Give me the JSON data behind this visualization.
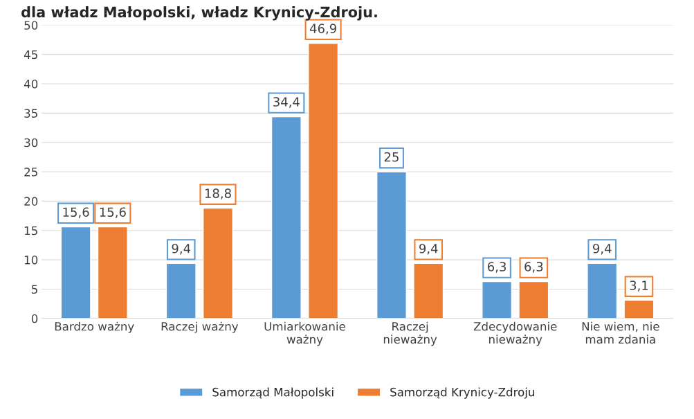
{
  "chart_data": {
    "type": "bar",
    "title": "dla władz Małopolski, władz Krynicy-Zdroju.",
    "categories": [
      "Bardzo ważny",
      "Raczej ważny",
      "Umiarkowanie\nważny",
      "Raczej\nnieważny",
      "Zdecydowanie\nnieważny",
      "Nie wiem, nie\nmam zdania"
    ],
    "series": [
      {
        "name": "Samorząd Małopolski",
        "color": "#5b9bd5",
        "values": [
          15.6,
          9.4,
          34.4,
          25,
          6.3,
          9.4
        ],
        "value_labels": [
          "15,6",
          "9,4",
          "34,4",
          "25",
          "6,3",
          "9,4"
        ]
      },
      {
        "name": "Samorząd Krynicy-Zdroju",
        "color": "#ed7d31",
        "values": [
          15.6,
          18.8,
          46.9,
          9.4,
          6.3,
          3.1
        ],
        "value_labels": [
          "15,6",
          "18,8",
          "46,9",
          "9,4",
          "6,3",
          "3,1"
        ]
      }
    ],
    "ylim": [
      0,
      50
    ],
    "yticks": [
      0,
      5,
      10,
      15,
      20,
      25,
      30,
      35,
      40,
      45,
      50
    ],
    "grid": "y",
    "legend": "bottom"
  }
}
